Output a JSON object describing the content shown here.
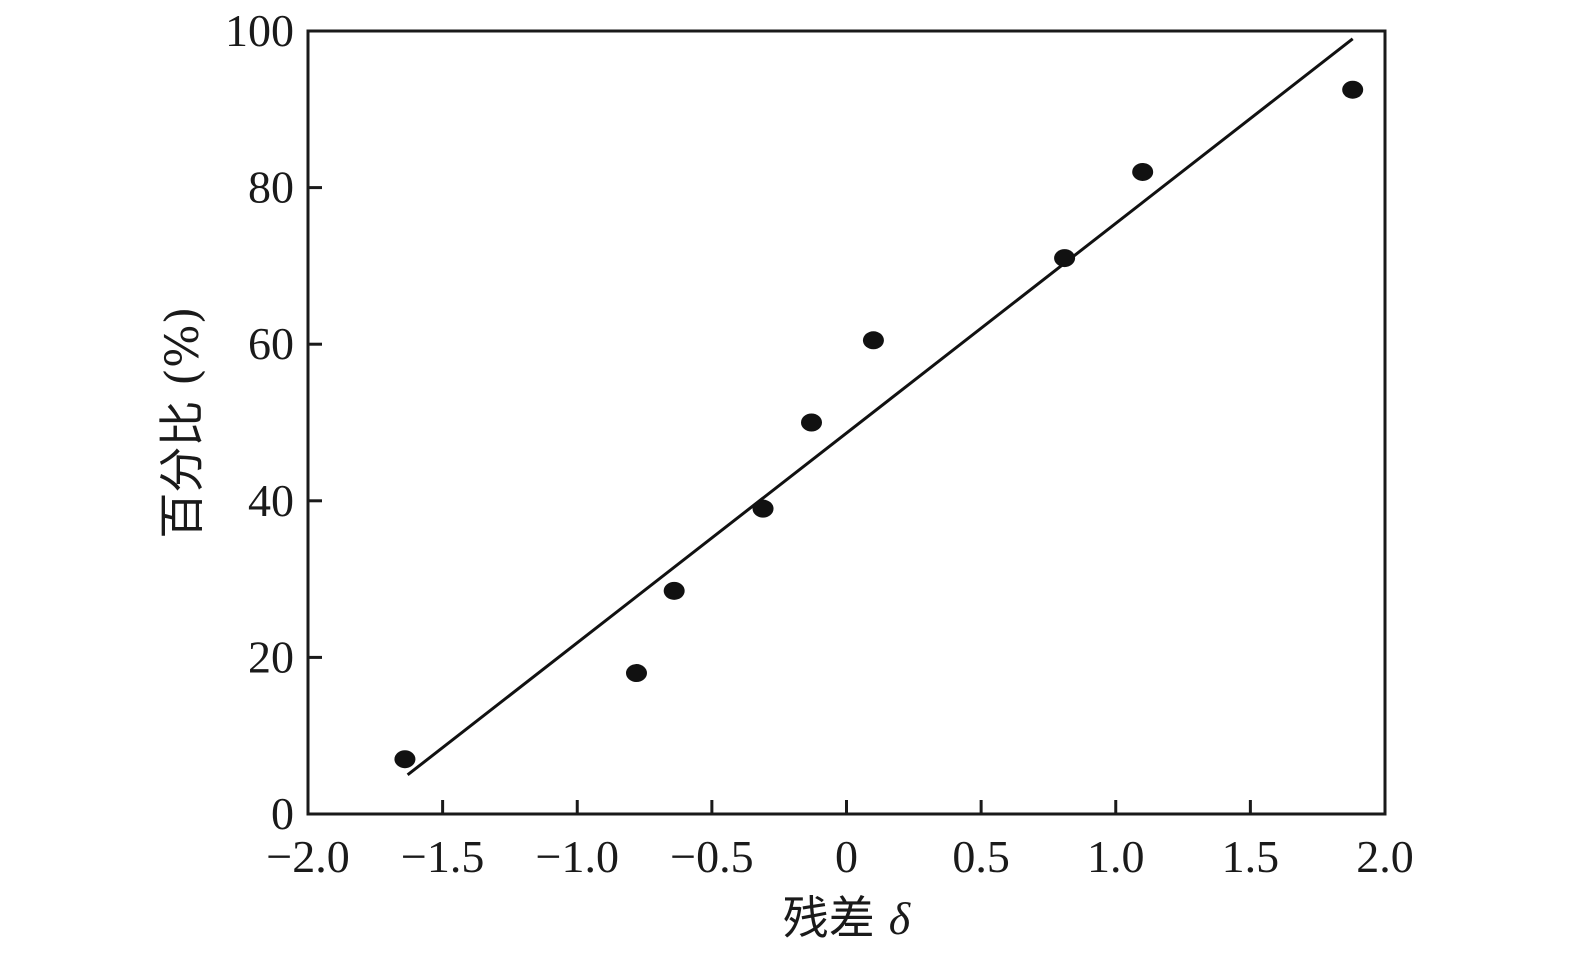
{
  "chart_data": {
    "type": "scatter",
    "title": "",
    "xlabel": "残差",
    "xlabel_symbol": "δ",
    "ylabel": "百分比 (%)",
    "xlim": [
      -2.0,
      2.0
    ],
    "ylim": [
      0,
      100
    ],
    "x_ticks": [
      -2.0,
      -1.5,
      -1.0,
      -0.5,
      0,
      0.5,
      1.0,
      1.5,
      2.0
    ],
    "x_tick_labels": [
      "−2.0",
      "−1.5",
      "−1.0",
      "−0.5",
      "0",
      "0.5",
      "1.0",
      "1.5",
      "2.0"
    ],
    "y_ticks": [
      0,
      20,
      40,
      60,
      80,
      100
    ],
    "y_tick_labels": [
      "0",
      "20",
      "40",
      "60",
      "80",
      "100"
    ],
    "grid": false,
    "legend": "none",
    "points": {
      "x": [
        -1.64,
        -0.78,
        -0.64,
        -0.31,
        -0.13,
        0.1,
        0.81,
        1.1,
        1.88
      ],
      "y": [
        7,
        18,
        28.5,
        39,
        50,
        60.5,
        71,
        82,
        92.5
      ]
    },
    "fit_line": {
      "x": [
        -1.63,
        1.88
      ],
      "y": [
        5,
        99
      ]
    },
    "colors": {
      "marker": "#111111",
      "line": "#111111",
      "axis": "#1a1a1a"
    }
  }
}
